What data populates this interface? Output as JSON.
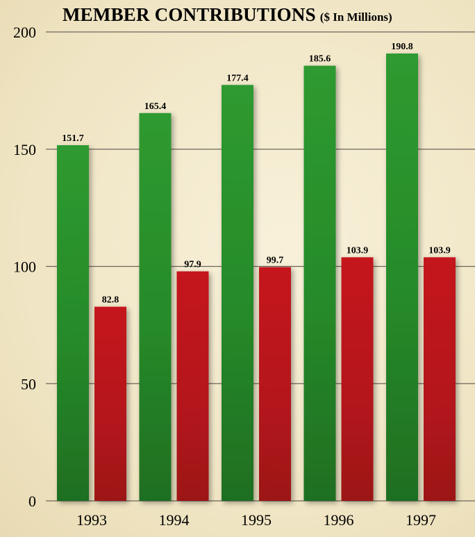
{
  "chart_data": {
    "type": "bar",
    "title": "MEMBER CONTRIBUTIONS",
    "subtitle": "($ In Millions)",
    "categories": [
      "1993",
      "1994",
      "1995",
      "1996",
      "1997"
    ],
    "series": [
      {
        "values": [
          151.7,
          165.4,
          177.4,
          185.6,
          190.8
        ],
        "color": "#2e8b2e"
      },
      {
        "values": [
          82.8,
          97.9,
          99.7,
          103.9,
          103.9
        ],
        "color": "#b3141b"
      }
    ],
    "data_labels": [
      [
        "151.7",
        "165.4",
        "177.4",
        "185.6",
        "190.8"
      ],
      [
        "82.8",
        "97.9",
        "99.7",
        "103.9",
        "103.9"
      ]
    ],
    "y_ticks": [
      "0",
      "50",
      "100",
      "150",
      "200"
    ],
    "ylim": [
      0,
      200
    ],
    "grid": true,
    "xlabel": "",
    "ylabel": ""
  }
}
